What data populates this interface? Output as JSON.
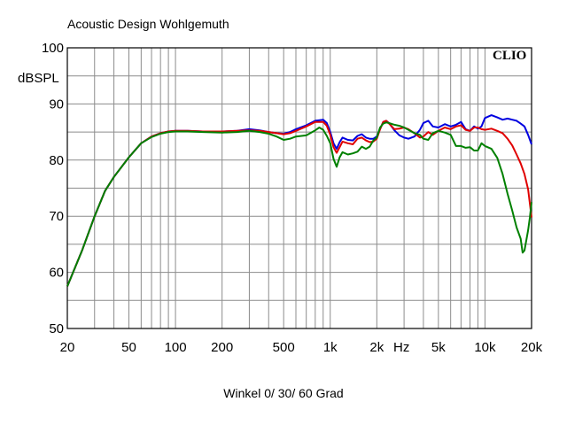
{
  "chart_data": {
    "type": "line",
    "title": "Acoustic Design Wohlgemuth",
    "subtitle": "Winkel 0/ 30/ 60 Grad",
    "ylabel": "dBSPL",
    "xunit": "Hz",
    "logo": "CLIO",
    "xscale": "log",
    "xlim": [
      20,
      20000
    ],
    "ylim": [
      50,
      100
    ],
    "grid": true,
    "legend": "none",
    "x_ticks": [
      {
        "value": 20,
        "label": "20"
      },
      {
        "value": 50,
        "label": "50"
      },
      {
        "value": 100,
        "label": "100"
      },
      {
        "value": 200,
        "label": "200"
      },
      {
        "value": 500,
        "label": "500"
      },
      {
        "value": 1000,
        "label": "1k"
      },
      {
        "value": 2000,
        "label": "2k"
      },
      {
        "value": 5000,
        "label": "5k"
      },
      {
        "value": 10000,
        "label": "10k"
      },
      {
        "value": 20000,
        "label": "20k"
      }
    ],
    "y_ticks": [
      50,
      60,
      70,
      80,
      90,
      100
    ],
    "series": [
      {
        "color": "#0000e0",
        "points": [
          [
            20,
            57.5
          ],
          [
            25,
            64
          ],
          [
            30,
            70
          ],
          [
            35,
            74.5
          ],
          [
            40,
            77
          ],
          [
            50,
            80.5
          ],
          [
            60,
            83
          ],
          [
            70,
            84.2
          ],
          [
            80,
            84.8
          ],
          [
            90,
            85.1
          ],
          [
            100,
            85.2
          ],
          [
            120,
            85.2
          ],
          [
            150,
            85.1
          ],
          [
            200,
            85.1
          ],
          [
            250,
            85.2
          ],
          [
            300,
            85.5
          ],
          [
            350,
            85.3
          ],
          [
            400,
            85
          ],
          [
            450,
            84.8
          ],
          [
            500,
            84.7
          ],
          [
            550,
            85
          ],
          [
            600,
            85.5
          ],
          [
            700,
            86.2
          ],
          [
            800,
            87
          ],
          [
            900,
            87.2
          ],
          [
            950,
            86.6
          ],
          [
            1000,
            85
          ],
          [
            1050,
            83
          ],
          [
            1100,
            82
          ],
          [
            1150,
            83.2
          ],
          [
            1200,
            84
          ],
          [
            1300,
            83.6
          ],
          [
            1400,
            83.5
          ],
          [
            1500,
            84.3
          ],
          [
            1600,
            84.6
          ],
          [
            1700,
            84
          ],
          [
            1800,
            83.8
          ],
          [
            1900,
            83.8
          ],
          [
            2000,
            84.2
          ],
          [
            2100,
            85.5
          ],
          [
            2200,
            86.8
          ],
          [
            2300,
            87
          ],
          [
            2400,
            86.6
          ],
          [
            2600,
            85.3
          ],
          [
            2800,
            84.4
          ],
          [
            3000,
            84
          ],
          [
            3200,
            83.8
          ],
          [
            3500,
            84.2
          ],
          [
            3800,
            85.4
          ],
          [
            4000,
            86.6
          ],
          [
            4300,
            87
          ],
          [
            4600,
            86
          ],
          [
            5000,
            85.8
          ],
          [
            5500,
            86.4
          ],
          [
            6000,
            86
          ],
          [
            6500,
            86.3
          ],
          [
            7000,
            86.8
          ],
          [
            7500,
            85.5
          ],
          [
            8000,
            85.2
          ],
          [
            8500,
            86
          ],
          [
            9000,
            85.6
          ],
          [
            9500,
            86
          ],
          [
            10000,
            87.5
          ],
          [
            11000,
            88
          ],
          [
            12000,
            87.6
          ],
          [
            13000,
            87.2
          ],
          [
            14000,
            87.4
          ],
          [
            15000,
            87.2
          ],
          [
            16000,
            87
          ],
          [
            17000,
            86.5
          ],
          [
            18000,
            86
          ],
          [
            19000,
            84.5
          ],
          [
            20000,
            82.8
          ]
        ]
      },
      {
        "color": "#e00000",
        "points": [
          [
            20,
            57.5
          ],
          [
            25,
            64
          ],
          [
            30,
            70
          ],
          [
            35,
            74.5
          ],
          [
            40,
            77
          ],
          [
            50,
            80.5
          ],
          [
            60,
            83
          ],
          [
            70,
            84.2
          ],
          [
            80,
            84.8
          ],
          [
            90,
            85.1
          ],
          [
            100,
            85.2
          ],
          [
            120,
            85.2
          ],
          [
            150,
            85.1
          ],
          [
            200,
            85.1
          ],
          [
            250,
            85.2
          ],
          [
            300,
            85.3
          ],
          [
            350,
            85.2
          ],
          [
            400,
            85
          ],
          [
            450,
            84.8
          ],
          [
            500,
            84.6
          ],
          [
            550,
            84.8
          ],
          [
            600,
            85.2
          ],
          [
            700,
            86
          ],
          [
            800,
            86.8
          ],
          [
            900,
            86.8
          ],
          [
            950,
            86.1
          ],
          [
            1000,
            84.5
          ],
          [
            1050,
            82.3
          ],
          [
            1100,
            81.3
          ],
          [
            1150,
            82.3
          ],
          [
            1200,
            83.3
          ],
          [
            1300,
            83
          ],
          [
            1400,
            82.8
          ],
          [
            1500,
            83.8
          ],
          [
            1600,
            84
          ],
          [
            1700,
            83.5
          ],
          [
            1800,
            83.2
          ],
          [
            1900,
            83.3
          ],
          [
            2000,
            83.8
          ],
          [
            2100,
            85.5
          ],
          [
            2200,
            86.8
          ],
          [
            2300,
            87
          ],
          [
            2400,
            86.5
          ],
          [
            2600,
            85.5
          ],
          [
            2800,
            85.6
          ],
          [
            3000,
            85.8
          ],
          [
            3200,
            85.5
          ],
          [
            3500,
            84.8
          ],
          [
            3800,
            84
          ],
          [
            4000,
            84.2
          ],
          [
            4300,
            85
          ],
          [
            4600,
            84.5
          ],
          [
            5000,
            85.2
          ],
          [
            5500,
            85.8
          ],
          [
            6000,
            85.5
          ],
          [
            6500,
            86
          ],
          [
            7000,
            86.2
          ],
          [
            7500,
            85.4
          ],
          [
            8000,
            85.2
          ],
          [
            8500,
            85.8
          ],
          [
            9000,
            85.8
          ],
          [
            9500,
            85.5
          ],
          [
            10000,
            85.4
          ],
          [
            11000,
            85.6
          ],
          [
            12000,
            85.2
          ],
          [
            13000,
            84.8
          ],
          [
            14000,
            83.8
          ],
          [
            15000,
            82.6
          ],
          [
            16000,
            81
          ],
          [
            17000,
            79.4
          ],
          [
            18000,
            77.5
          ],
          [
            19000,
            74.8
          ],
          [
            20000,
            69.8
          ]
        ]
      },
      {
        "color": "#008000",
        "points": [
          [
            20,
            57.5
          ],
          [
            25,
            64
          ],
          [
            30,
            70
          ],
          [
            35,
            74.5
          ],
          [
            40,
            77
          ],
          [
            50,
            80.5
          ],
          [
            60,
            83
          ],
          [
            70,
            84.1
          ],
          [
            80,
            84.7
          ],
          [
            90,
            85
          ],
          [
            100,
            85.1
          ],
          [
            120,
            85.1
          ],
          [
            150,
            85
          ],
          [
            200,
            84.9
          ],
          [
            250,
            85
          ],
          [
            300,
            85.2
          ],
          [
            350,
            85
          ],
          [
            400,
            84.7
          ],
          [
            450,
            84.2
          ],
          [
            500,
            83.6
          ],
          [
            550,
            83.8
          ],
          [
            600,
            84.2
          ],
          [
            700,
            84.4
          ],
          [
            800,
            85.3
          ],
          [
            850,
            85.8
          ],
          [
            900,
            85.4
          ],
          [
            950,
            84.3
          ],
          [
            1000,
            83
          ],
          [
            1050,
            80.2
          ],
          [
            1100,
            78.8
          ],
          [
            1150,
            80.5
          ],
          [
            1200,
            81.4
          ],
          [
            1300,
            81
          ],
          [
            1400,
            81.2
          ],
          [
            1500,
            81.5
          ],
          [
            1600,
            82.4
          ],
          [
            1700,
            82
          ],
          [
            1800,
            82.4
          ],
          [
            1900,
            83.5
          ],
          [
            2000,
            84
          ],
          [
            2100,
            85.8
          ],
          [
            2200,
            86.5
          ],
          [
            2300,
            86.7
          ],
          [
            2400,
            86.6
          ],
          [
            2600,
            86.3
          ],
          [
            2800,
            86.1
          ],
          [
            3000,
            85.8
          ],
          [
            3200,
            85.4
          ],
          [
            3500,
            84.8
          ],
          [
            3800,
            84.5
          ],
          [
            4000,
            83.8
          ],
          [
            4300,
            83.6
          ],
          [
            4600,
            84.8
          ],
          [
            5000,
            85.2
          ],
          [
            5500,
            84.9
          ],
          [
            6000,
            84.5
          ],
          [
            6500,
            82.5
          ],
          [
            7000,
            82.5
          ],
          [
            7500,
            82.2
          ],
          [
            8000,
            82.3
          ],
          [
            8500,
            81.7
          ],
          [
            9000,
            81.7
          ],
          [
            9500,
            83
          ],
          [
            10000,
            82.5
          ],
          [
            11000,
            82
          ],
          [
            12000,
            80.4
          ],
          [
            13000,
            77.5
          ],
          [
            14000,
            74
          ],
          [
            15000,
            71
          ],
          [
            16000,
            68
          ],
          [
            17000,
            66
          ],
          [
            17500,
            63.5
          ],
          [
            18000,
            63.9
          ],
          [
            19000,
            67.5
          ],
          [
            19500,
            69.8
          ],
          [
            20000,
            72.5
          ]
        ]
      }
    ]
  }
}
